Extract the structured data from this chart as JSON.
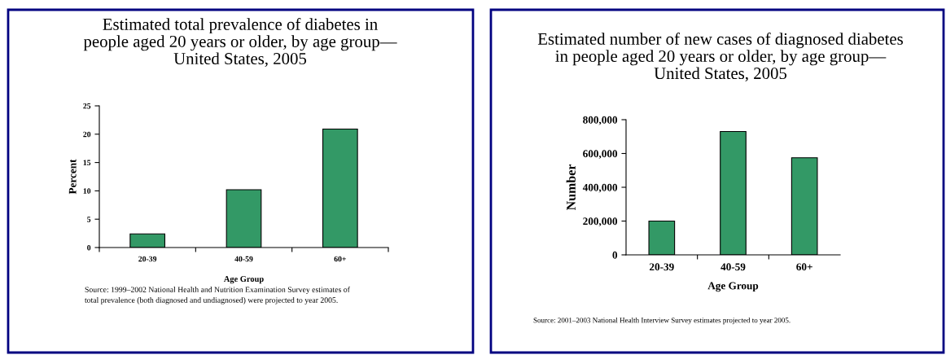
{
  "chart_data": [
    {
      "type": "bar",
      "title": "Estimated total prevalence of diabetes in\npeople aged 20 years or older, by age group—\nUnited States, 2005",
      "xlabel": "Age Group",
      "ylabel": "Percent",
      "categories": [
        "20-39",
        "40-59",
        "60+"
      ],
      "values": [
        2.4,
        10.2,
        20.9
      ],
      "color": "#339966",
      "ylim": [
        0,
        25
      ],
      "yticks": [
        0,
        5,
        10,
        15,
        20,
        25
      ],
      "grid": false,
      "annotations": [
        "Source: 1999–2002 National Health and Nutrition Examination Survey estimates of\ntotal prevalence (both diagnosed and undiagnosed) were projected to year 2005."
      ]
    },
    {
      "type": "bar",
      "title": "Estimated number of new cases of diagnosed diabetes\nin people aged 20 years or older, by age group—\nUnited States, 2005",
      "xlabel": "Age Group",
      "ylabel": "Number",
      "categories": [
        "20-39",
        "40-59",
        "60+"
      ],
      "values": [
        200000,
        730000,
        575000
      ],
      "color": "#339966",
      "ylim": [
        0,
        800000
      ],
      "yticks": [
        {
          "value": 0,
          "label": "0"
        },
        {
          "value": 200000,
          "label": "200,000"
        },
        {
          "value": 400000,
          "label": "400,000"
        },
        {
          "value": 600000,
          "label": "600,000"
        },
        {
          "value": 800000,
          "label": "800,000"
        }
      ],
      "grid": false,
      "annotations": [
        "Source: 2001–2003 National Health Interview Survey estimates projected to year 2005."
      ]
    }
  ]
}
